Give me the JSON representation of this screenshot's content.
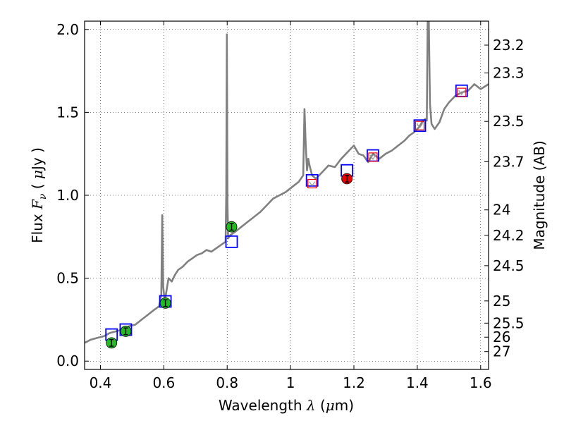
{
  "chart_data": {
    "type": "line",
    "xlabel": "Wavelength  λ (μm)",
    "ylabel": "Flux  Fν  ( μJy )",
    "ylabel_right": "Magnitude (AB)",
    "xlim": [
      0.35,
      1.625
    ],
    "ylim": [
      -0.05,
      2.05
    ],
    "grid": true,
    "x_ticks": [
      {
        "value": 0.4,
        "label": "0.4"
      },
      {
        "value": 0.6,
        "label": "0.6"
      },
      {
        "value": 0.8,
        "label": "0.8"
      },
      {
        "value": 1.0,
        "label": "1"
      },
      {
        "value": 1.2,
        "label": "1.2"
      },
      {
        "value": 1.4,
        "label": "1.4"
      },
      {
        "value": 1.6,
        "label": "1.6"
      }
    ],
    "y_ticks": [
      {
        "value": 0.0,
        "label": "0.0"
      },
      {
        "value": 0.5,
        "label": "0.5"
      },
      {
        "value": 1.0,
        "label": "1.0"
      },
      {
        "value": 1.5,
        "label": "1.5"
      },
      {
        "value": 2.0,
        "label": "2.0"
      }
    ],
    "mag_ticks": [
      {
        "mag": 23.2,
        "label": "23.2"
      },
      {
        "mag": 23.3,
        "label": "23.3"
      },
      {
        "mag": 23.5,
        "label": "23.5"
      },
      {
        "mag": 23.7,
        "label": "23.7"
      },
      {
        "mag": 24.0,
        "label": "24"
      },
      {
        "mag": 24.2,
        "label": "24.2"
      },
      {
        "mag": 24.5,
        "label": "24.5"
      },
      {
        "mag": 25.0,
        "label": "25"
      },
      {
        "mag": 25.5,
        "label": "25.5"
      },
      {
        "mag": 26.0,
        "label": "26"
      },
      {
        "mag": 27.0,
        "label": "27"
      }
    ],
    "sed_model": {
      "color": "#808080",
      "x": [
        0.35,
        0.37,
        0.39,
        0.41,
        0.43,
        0.45,
        0.47,
        0.49,
        0.51,
        0.53,
        0.55,
        0.57,
        0.585,
        0.592,
        0.595,
        0.598,
        0.603,
        0.615,
        0.625,
        0.635,
        0.645,
        0.66,
        0.675,
        0.69,
        0.705,
        0.72,
        0.735,
        0.75,
        0.765,
        0.78,
        0.795,
        0.797,
        0.799,
        0.801,
        0.803,
        0.81,
        0.825,
        0.845,
        0.865,
        0.885,
        0.905,
        0.925,
        0.945,
        0.965,
        0.985,
        1.005,
        1.025,
        1.04,
        1.044,
        1.048,
        1.052,
        1.056,
        1.06,
        1.068,
        1.08,
        1.1,
        1.12,
        1.14,
        1.16,
        1.18,
        1.2,
        1.215,
        1.23,
        1.245,
        1.26,
        1.28,
        1.3,
        1.32,
        1.34,
        1.36,
        1.375,
        1.39,
        1.405,
        1.415,
        1.425,
        1.43,
        1.433,
        1.436,
        1.44,
        1.445,
        1.455,
        1.47,
        1.485,
        1.5,
        1.52,
        1.54,
        1.56,
        1.58,
        1.6,
        1.625
      ],
      "y": [
        0.11,
        0.13,
        0.14,
        0.15,
        0.17,
        0.18,
        0.19,
        0.21,
        0.22,
        0.25,
        0.28,
        0.31,
        0.33,
        0.4,
        0.88,
        0.45,
        0.36,
        0.5,
        0.48,
        0.52,
        0.55,
        0.57,
        0.6,
        0.62,
        0.64,
        0.65,
        0.67,
        0.66,
        0.68,
        0.7,
        0.72,
        1.0,
        1.97,
        0.95,
        0.74,
        0.76,
        0.78,
        0.81,
        0.84,
        0.87,
        0.9,
        0.94,
        0.98,
        1.0,
        1.02,
        1.05,
        1.08,
        1.12,
        1.52,
        1.3,
        1.15,
        1.22,
        1.18,
        1.12,
        1.1,
        1.14,
        1.18,
        1.17,
        1.22,
        1.26,
        1.3,
        1.25,
        1.24,
        1.2,
        1.25,
        1.22,
        1.25,
        1.27,
        1.3,
        1.33,
        1.36,
        1.38,
        1.41,
        1.44,
        1.46,
        1.45,
        2.1,
        2.1,
        1.55,
        1.43,
        1.4,
        1.44,
        1.52,
        1.56,
        1.6,
        1.62,
        1.63,
        1.67,
        1.64,
        1.67
      ]
    },
    "model_photometry": {
      "marker": "open-square",
      "color": "#0000ff",
      "points": [
        {
          "x": 0.435,
          "y": 0.16
        },
        {
          "x": 0.48,
          "y": 0.19
        },
        {
          "x": 0.605,
          "y": 0.36
        },
        {
          "x": 0.814,
          "y": 0.72
        },
        {
          "x": 1.068,
          "y": 1.09
        },
        {
          "x": 1.178,
          "y": 1.15
        },
        {
          "x": 1.26,
          "y": 1.24
        },
        {
          "x": 1.408,
          "y": 1.42
        },
        {
          "x": 1.54,
          "y": 1.63
        }
      ]
    },
    "detections_optical": {
      "marker": "filled-circle",
      "color": "#22bb22",
      "points": [
        {
          "x": 0.435,
          "y": 0.11,
          "err": 0.02
        },
        {
          "x": 0.48,
          "y": 0.18,
          "err": 0.02
        },
        {
          "x": 0.605,
          "y": 0.35,
          "err": 0.02
        },
        {
          "x": 0.814,
          "y": 0.81,
          "err": 0.02
        }
      ]
    },
    "detections_nir": {
      "marker": "filled-circle",
      "color": "#ee0000",
      "points": [
        {
          "x": 1.178,
          "y": 1.1,
          "err": 0.02
        }
      ]
    },
    "upper_limits": {
      "marker": "small-open-square-with-v",
      "color": "#ee0000",
      "points": [
        {
          "x": 1.068,
          "y": 1.07
        },
        {
          "x": 1.26,
          "y": 1.23
        },
        {
          "x": 1.408,
          "y": 1.42
        },
        {
          "x": 1.54,
          "y": 1.62
        }
      ]
    }
  }
}
